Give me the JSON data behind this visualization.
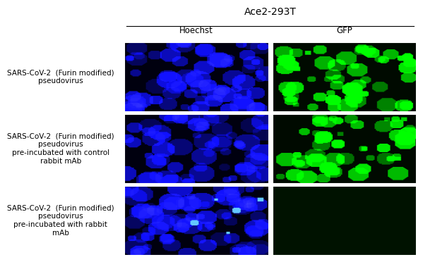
{
  "title_top": "Ace2-293T",
  "col_headers": [
    "Hoechst",
    "GFP"
  ],
  "row_labels": [
    "SARS-CoV-2  (Furin modified)\npseudovirus",
    "SARS-CoV-2  (Furin modified)\npseudovirus\npre-incubated with control\nrabbit mAb",
    "SARS-CoV-2  (Furin modified)\npseudovirus\npre-incubated with rabbit\nmAb"
  ],
  "hoechst_base_color": [
    0,
    0,
    180
  ],
  "hoechst_dark_color": [
    0,
    0,
    0
  ],
  "gfp_base_color": [
    0,
    100,
    0
  ],
  "gfp_bright_color": [
    0,
    255,
    0
  ],
  "bg_color": "#ffffff",
  "font_size_header": 9,
  "font_size_label": 7.5,
  "font_size_col": 8.5
}
